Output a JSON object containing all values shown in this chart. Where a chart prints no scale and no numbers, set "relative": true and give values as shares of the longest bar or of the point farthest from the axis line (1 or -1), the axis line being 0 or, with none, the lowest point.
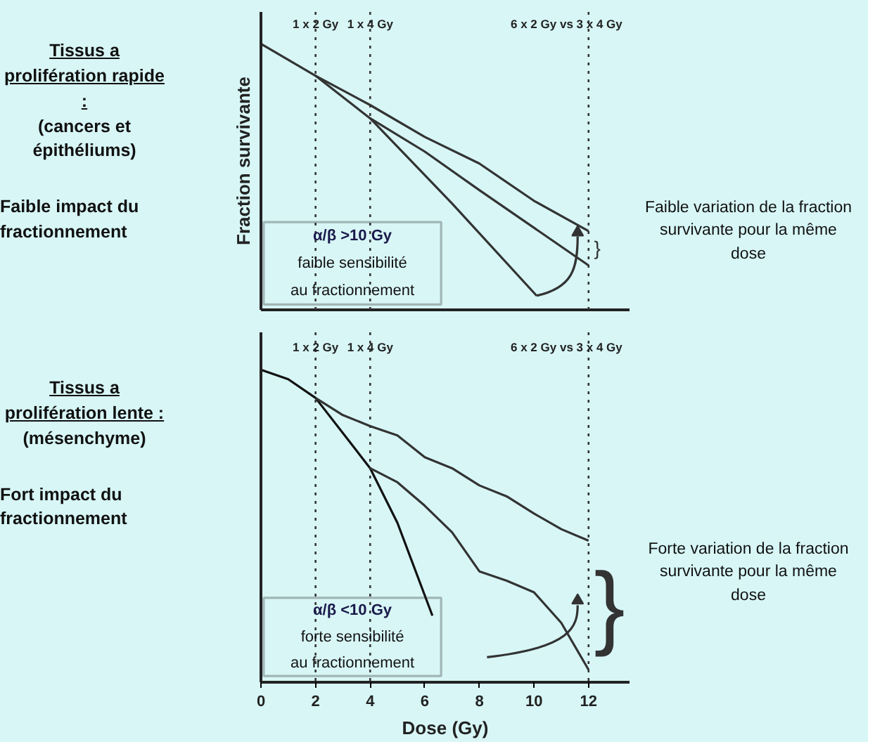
{
  "chart_data": [
    {
      "type": "line",
      "relative": true,
      "ylabel": "Fraction survivante",
      "xlim": [
        0,
        13.5
      ],
      "tick_labels": false,
      "grid": false,
      "line_style": "solid",
      "marker": "none",
      "series": [
        {
          "color": "#333333",
          "x": [
            0,
            2,
            4,
            7,
            10.1
          ],
          "values": [
            1,
            0.88,
            0.72,
            0.4,
            0.053
          ]
        },
        {
          "color": "#333333",
          "x": [
            2,
            4,
            6,
            8,
            10,
            12
          ],
          "values": [
            0.88,
            0.77,
            0.65,
            0.55,
            0.41,
            0.296
          ]
        },
        {
          "color": "#333333",
          "x": [
            4,
            6,
            8,
            12
          ],
          "values": [
            0.72,
            0.595,
            0.45,
            0.167
          ]
        }
      ],
      "ref_lines": [
        {
          "axis": "x",
          "value": 2,
          "label": "1 x 2 Gy",
          "line_style": "dotted"
        },
        {
          "axis": "x",
          "value": 4,
          "label": "1 x 4 Gy",
          "line_style": "dotted"
        },
        {
          "axis": "x",
          "value": 12,
          "label": "6 x 2 Gy vs 3 x 4 Gy",
          "line_style": "dotted"
        }
      ],
      "annotations": [
        "Tissus a prolifération rapide :",
        "(cancers et épithéliums)",
        "Faible impact du fractionnement",
        "α/β >10 Gy",
        "faible sensibilité au fractionnement",
        "Faible variation de la fraction survivante pour la même dose",
        "}"
      ]
    },
    {
      "type": "line",
      "relative": true,
      "xlabel": "Dose (Gy)",
      "xlim": [
        0,
        13.5
      ],
      "xticks": [
        0,
        2,
        4,
        6,
        8,
        10,
        12
      ],
      "tick_labels": "x",
      "grid": false,
      "line_style": "solid",
      "marker": "none",
      "series": [
        {
          "color": "#111111",
          "x": [
            0,
            1,
            2,
            4,
            5,
            6.28
          ],
          "values": [
            1,
            0.97,
            0.91,
            0.685,
            0.51,
            0.213
          ]
        },
        {
          "color": "#333333",
          "x": [
            2,
            3,
            4,
            5,
            6,
            7,
            8,
            9,
            10,
            11,
            12
          ],
          "values": [
            0.91,
            0.855,
            0.82,
            0.79,
            0.72,
            0.685,
            0.63,
            0.595,
            0.54,
            0.49,
            0.453
          ]
        },
        {
          "color": "#333333",
          "x": [
            4,
            5,
            6,
            7,
            8,
            9,
            10,
            11,
            12
          ],
          "values": [
            0.685,
            0.64,
            0.565,
            0.48,
            0.355,
            0.325,
            0.288,
            0.19,
            0.04
          ]
        }
      ],
      "ref_lines": [
        {
          "axis": "x",
          "value": 2,
          "label": "1 x 2 Gy",
          "line_style": "dotted"
        },
        {
          "axis": "x",
          "value": 4,
          "label": "1 x 4 Gy",
          "line_style": "dotted"
        },
        {
          "axis": "x",
          "value": 12,
          "label": "6 x 2 Gy vs 3 x 4 Gy",
          "line_style": "dotted"
        }
      ],
      "annotations": [
        "Tissus a prolifération lente :",
        "(mésenchyme)",
        "Fort impact du fractionnement",
        "α/β <10 Gy",
        "forte sensibilité au fractionnement",
        "Forte variation de la fraction survivante pour la même dose",
        "}"
      ]
    }
  ]
}
